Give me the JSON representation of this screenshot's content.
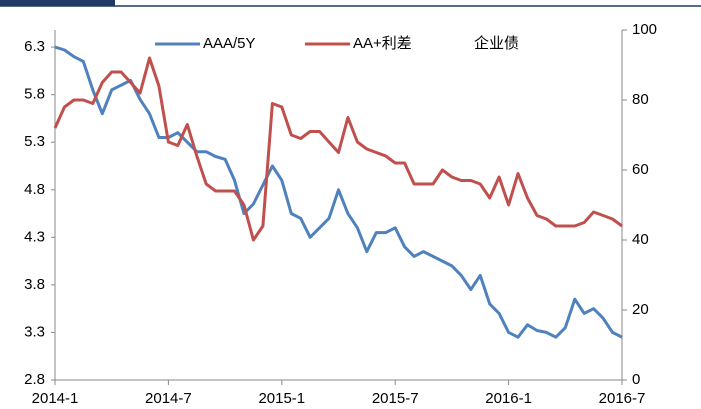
{
  "chart_data": {
    "type": "line",
    "categories": [
      "2014-1",
      null,
      null,
      null,
      null,
      null,
      null,
      null,
      null,
      null,
      null,
      null,
      "2014-7",
      null,
      null,
      null,
      null,
      null,
      null,
      null,
      null,
      null,
      null,
      null,
      "2015-1",
      null,
      null,
      null,
      null,
      null,
      null,
      null,
      null,
      null,
      null,
      null,
      "2015-7",
      null,
      null,
      null,
      null,
      null,
      null,
      null,
      null,
      null,
      null,
      null,
      "2016-1",
      null,
      null,
      null,
      null,
      null,
      null,
      null,
      null,
      null,
      null,
      null,
      "2016-7"
    ],
    "series": [
      {
        "name": "AAA/5Y",
        "color": "#4f81bd",
        "axis": "y",
        "values": [
          6.3,
          6.27,
          6.2,
          6.15,
          5.85,
          5.6,
          5.85,
          5.9,
          5.95,
          5.75,
          5.6,
          5.35,
          5.35,
          5.4,
          5.3,
          5.2,
          5.2,
          5.15,
          5.12,
          4.9,
          4.55,
          4.65,
          4.85,
          5.05,
          4.9,
          4.55,
          4.5,
          4.3,
          4.4,
          4.5,
          4.8,
          4.55,
          4.4,
          4.15,
          4.35,
          4.35,
          4.4,
          4.2,
          4.1,
          4.15,
          4.1,
          4.05,
          4.0,
          3.9,
          3.75,
          3.9,
          3.6,
          3.5,
          3.3,
          3.25,
          3.38,
          3.32,
          3.3,
          3.25,
          3.35,
          3.65,
          3.5,
          3.55,
          3.45,
          3.3,
          3.25
        ]
      },
      {
        "name": "AA+利差",
        "color": "#c0504d",
        "axis": "y2",
        "values": [
          72,
          78,
          80,
          80,
          79,
          85,
          88,
          88,
          85,
          82,
          92,
          84,
          68,
          67,
          73,
          64,
          56,
          54,
          54,
          54,
          50,
          40,
          44,
          79,
          78,
          70,
          69,
          71,
          71,
          68,
          65,
          75,
          68,
          66,
          65,
          64,
          62,
          62,
          56,
          56,
          56,
          60,
          58,
          57,
          57,
          56,
          52,
          58,
          50,
          59,
          52,
          47,
          46,
          44,
          44,
          44,
          45,
          48,
          47,
          46,
          44
        ]
      }
    ],
    "annotation": "企业债",
    "ylim": [
      2.8,
      6.48
    ],
    "yticks": [
      2.8,
      3.3,
      3.8,
      4.3,
      4.8,
      5.3,
      5.8,
      6.3
    ],
    "y2lim": [
      0,
      100
    ],
    "y2ticks": [
      0,
      20,
      40,
      60,
      80,
      100
    ]
  }
}
